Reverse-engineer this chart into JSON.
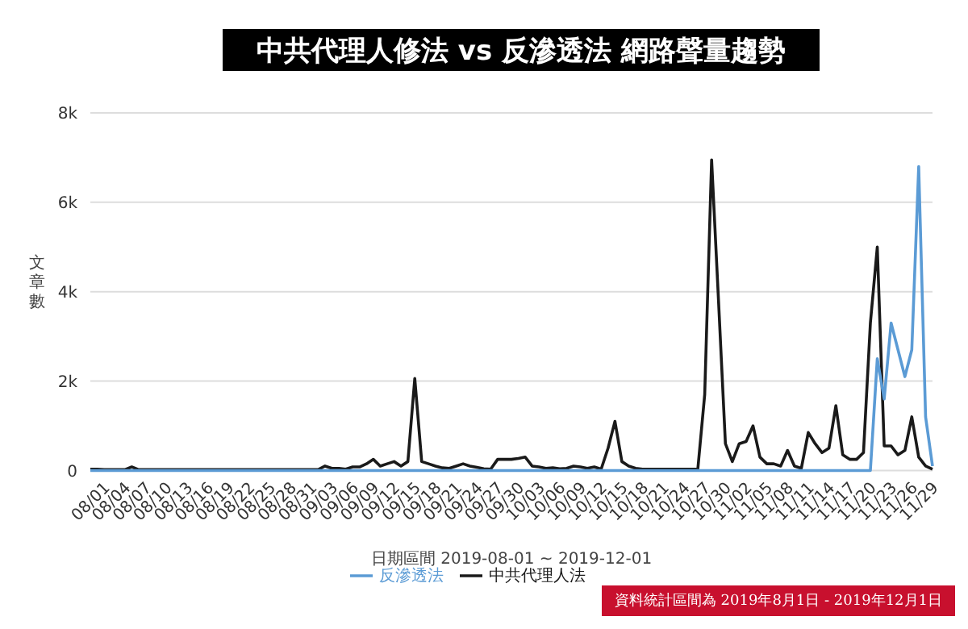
{
  "chart_data": {
    "type": "line",
    "title": "中共代理人修法 vs 反滲透法 網路聲量趨勢",
    "xlabel": "日期區間 2019-08-01 ~ 2019-12-01",
    "ylabel": "文章數",
    "annotations": [
      "資料統計區間為 2019年8月1日 - 2019年12月1日"
    ],
    "categories": [
      "08/01",
      null,
      null,
      "08/04",
      null,
      null,
      "08/07",
      null,
      null,
      "08/10",
      null,
      null,
      "08/13",
      null,
      null,
      "08/16",
      null,
      null,
      "08/19",
      null,
      null,
      "08/22",
      null,
      null,
      "08/25",
      null,
      null,
      "08/28",
      null,
      null,
      "08/31",
      null,
      null,
      "09/03",
      null,
      null,
      "09/06",
      null,
      null,
      "09/09",
      null,
      null,
      "09/12",
      null,
      null,
      "09/15",
      null,
      null,
      "09/18",
      null,
      null,
      "09/21",
      null,
      null,
      "09/24",
      null,
      null,
      "09/27",
      null,
      null,
      "09/30",
      null,
      null,
      "10/03",
      null,
      null,
      "10/06",
      null,
      null,
      "10/09",
      null,
      null,
      "10/12",
      null,
      null,
      "10/15",
      null,
      null,
      "10/18",
      null,
      null,
      "10/21",
      null,
      null,
      "10/24",
      null,
      null,
      "10/27",
      null,
      null,
      "10/30",
      null,
      null,
      "11/02",
      null,
      null,
      "11/05",
      null,
      null,
      "11/08",
      null,
      null,
      "11/11",
      null,
      null,
      "11/14",
      null,
      null,
      "11/17",
      null,
      null,
      "11/20",
      null,
      null,
      "11/23",
      null,
      null,
      "11/26",
      null,
      null,
      "11/29",
      null,
      null
    ],
    "series": [
      {
        "name": "反滲透法",
        "color": "#5b9bd5",
        "values": [
          0,
          0,
          0,
          0,
          0,
          0,
          0,
          0,
          0,
          0,
          0,
          0,
          0,
          0,
          0,
          0,
          0,
          0,
          0,
          0,
          0,
          0,
          0,
          0,
          0,
          0,
          0,
          0,
          0,
          0,
          0,
          0,
          0,
          0,
          0,
          0,
          0,
          0,
          0,
          0,
          0,
          0,
          0,
          0,
          0,
          0,
          0,
          0,
          0,
          0,
          0,
          0,
          0,
          0,
          0,
          0,
          0,
          0,
          0,
          0,
          0,
          0,
          0,
          0,
          0,
          0,
          0,
          0,
          0,
          0,
          0,
          0,
          0,
          0,
          0,
          0,
          0,
          0,
          0,
          0,
          0,
          0,
          0,
          0,
          0,
          0,
          0,
          0,
          0,
          0,
          0,
          0,
          0,
          0,
          0,
          0,
          0,
          0,
          0,
          0,
          0,
          0,
          0,
          0,
          0,
          0,
          0,
          0,
          0,
          0,
          0,
          0,
          0,
          0,
          2500,
          1600,
          3300,
          2700,
          2100,
          2700,
          6800,
          1200,
          100
        ]
      },
      {
        "name": "中共代理人法",
        "color": "#1a1a1a",
        "values": [
          30,
          30,
          20,
          20,
          20,
          20,
          80,
          20,
          20,
          20,
          20,
          20,
          20,
          20,
          20,
          20,
          20,
          20,
          20,
          20,
          20,
          20,
          20,
          20,
          20,
          20,
          20,
          20,
          20,
          20,
          20,
          20,
          20,
          20,
          100,
          50,
          50,
          30,
          80,
          80,
          150,
          250,
          100,
          150,
          200,
          100,
          200,
          2060,
          200,
          150,
          100,
          60,
          50,
          100,
          150,
          100,
          70,
          40,
          30,
          250,
          250,
          250,
          270,
          300,
          100,
          80,
          50,
          60,
          40,
          50,
          100,
          80,
          50,
          80,
          30,
          500,
          1100,
          200,
          100,
          50,
          30,
          30,
          30,
          30,
          30,
          30,
          30,
          30,
          30,
          1700,
          6950,
          3800,
          600,
          200,
          600,
          650,
          1000,
          300,
          150,
          150,
          100,
          450,
          100,
          50,
          850,
          600,
          400,
          500,
          1450,
          350,
          250,
          250,
          400,
          3300,
          5000,
          550,
          550,
          350,
          450,
          1200,
          300,
          100,
          30
        ]
      }
    ],
    "ylim": [
      0,
      8000
    ],
    "yticks": [
      {
        "value": 0,
        "label": "0"
      },
      {
        "value": 2000,
        "label": "2k"
      },
      {
        "value": 4000,
        "label": "4k"
      },
      {
        "value": 6000,
        "label": "6k"
      },
      {
        "value": 8000,
        "label": "8k"
      }
    ],
    "grid": "y",
    "legend": "bottom",
    "marker": "none",
    "line_style": "solid"
  }
}
